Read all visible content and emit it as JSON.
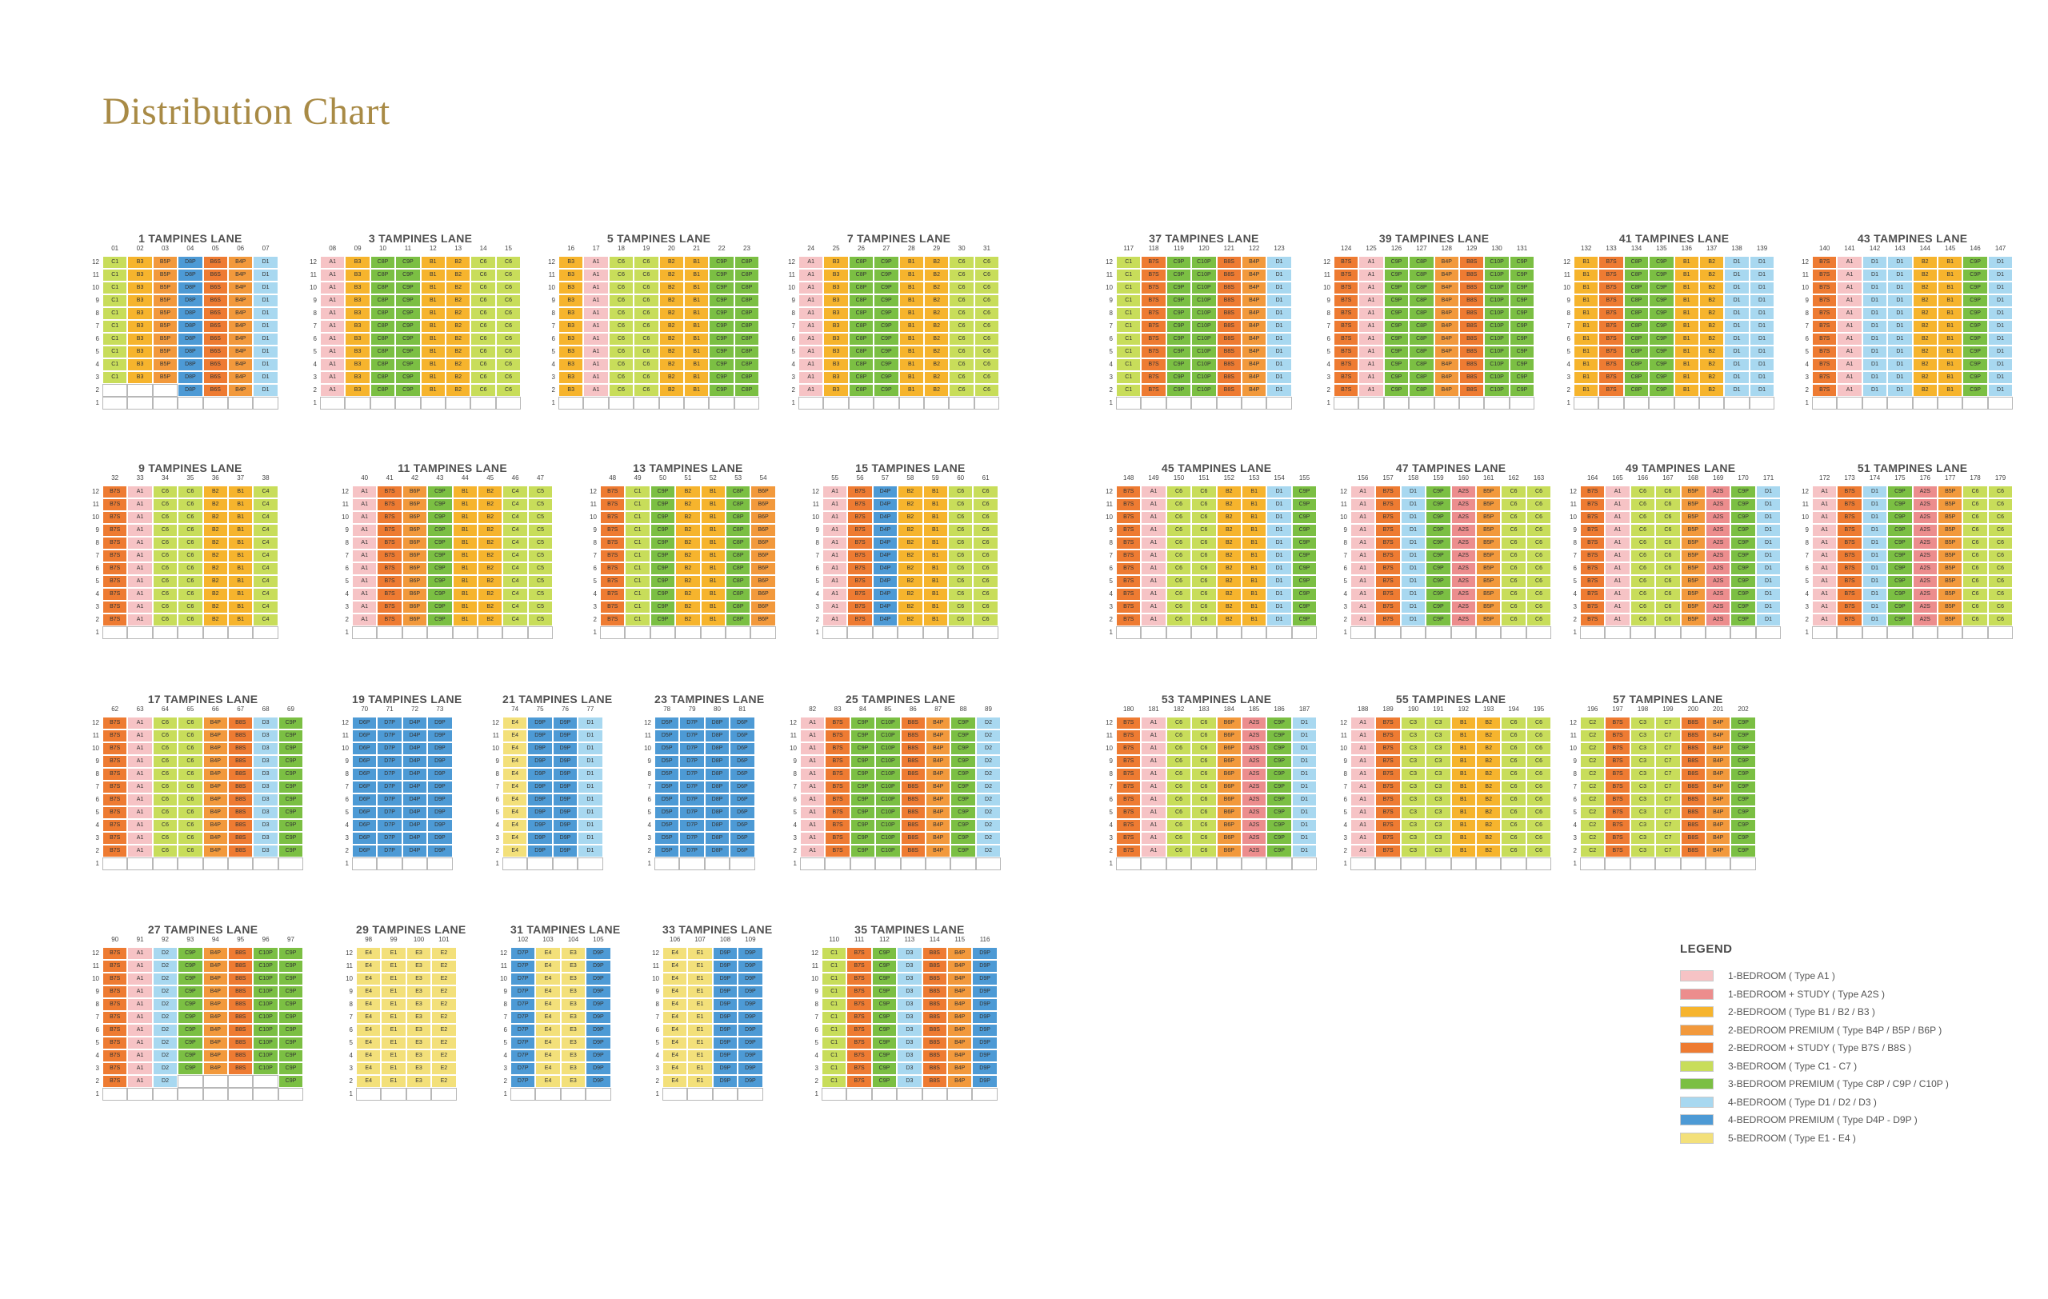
{
  "title": "Distribution Chart",
  "legend": {
    "title": "LEGEND",
    "items": [
      {
        "code": "a1",
        "label": "1-BEDROOM ( Type A1 )",
        "color": "#f6c3c5"
      },
      {
        "code": "a2s",
        "label": "1-BEDROOM + STUDY ( Type A2S )",
        "color": "#ec8d8d"
      },
      {
        "code": "b",
        "label": "2-BEDROOM ( Type B1 / B2 / B3 )",
        "color": "#f6b42d"
      },
      {
        "code": "bp",
        "label": "2-BEDROOM PREMIUM ( Type B4P / B5P / B6P )",
        "color": "#f2993c"
      },
      {
        "code": "bs",
        "label": "2-BEDROOM + STUDY ( Type B7S / B8S )",
        "color": "#ee7b32"
      },
      {
        "code": "c",
        "label": "3-BEDROOM ( Type C1 - C7 )",
        "color": "#c8dd5a"
      },
      {
        "code": "cp",
        "label": "3-BEDROOM PREMIUM ( Type C8P / C9P / C10P )",
        "color": "#7bbf43"
      },
      {
        "code": "d",
        "label": "4-BEDROOM ( Type D1 / D2 / D3 )",
        "color": "#a8d8f0"
      },
      {
        "code": "dp",
        "label": "4-BEDROOM PREMIUM ( Type D4P - D9P )",
        "color": "#4d9ad5"
      },
      {
        "code": "e",
        "label": "5-BEDROOM ( Type E1 - E4 )",
        "color": "#f3e07a"
      }
    ]
  },
  "chart_data": {
    "type": "table",
    "floors": [
      "12",
      "11",
      "10",
      "9",
      "8",
      "7",
      "6",
      "5",
      "4",
      "3",
      "2",
      "1"
    ],
    "blocks": [
      {
        "name": "1 TAMPINES LANE",
        "stacks": [
          "01",
          "02",
          "03",
          "04",
          "05",
          "06",
          "07"
        ],
        "types": [
          "C1",
          "B3",
          "B5P",
          "D8P",
          "B6S",
          "B4P",
          "D1"
        ],
        "empty": [
          [
            2,
            0
          ],
          [
            2,
            1
          ],
          [
            2,
            2
          ]
        ]
      },
      {
        "name": "3 TAMPINES LANE",
        "stacks": [
          "08",
          "09",
          "10",
          "11",
          "12",
          "13",
          "14",
          "15"
        ],
        "types": [
          "A1",
          "B3",
          "C8P",
          "C9P",
          "B1",
          "B2",
          "C6",
          "C6"
        ]
      },
      {
        "name": "5 TAMPINES LANE",
        "stacks": [
          "16",
          "17",
          "18",
          "19",
          "20",
          "21",
          "22",
          "23"
        ],
        "types": [
          "B3",
          "A1",
          "C6",
          "C6",
          "B2",
          "B1",
          "C9P",
          "C8P"
        ]
      },
      {
        "name": "7 TAMPINES LANE",
        "stacks": [
          "24",
          "25",
          "26",
          "27",
          "28",
          "29",
          "30",
          "31"
        ],
        "types": [
          "A1",
          "B3",
          "C8P",
          "C9P",
          "B1",
          "B2",
          "C6",
          "C6"
        ]
      },
      {
        "name": "37 TAMPINES LANE",
        "stacks": [
          "117",
          "118",
          "119",
          "120",
          "121",
          "122",
          "123"
        ],
        "types": [
          "C1",
          "B7S",
          "C9P",
          "C10P",
          "B8S",
          "B4P",
          "D1"
        ]
      },
      {
        "name": "39 TAMPINES LANE",
        "stacks": [
          "124",
          "125",
          "126",
          "127",
          "128",
          "129",
          "130",
          "131"
        ],
        "types": [
          "B7S",
          "A1",
          "C9P",
          "C8P",
          "B4P",
          "B8S",
          "C10P",
          "C9P"
        ]
      },
      {
        "name": "41 TAMPINES LANE",
        "stacks": [
          "132",
          "133",
          "134",
          "135",
          "136",
          "137",
          "138",
          "139"
        ],
        "types": [
          "B1",
          "B7S",
          "C8P",
          "C9P",
          "B1",
          "B2",
          "D1",
          "D1"
        ]
      },
      {
        "name": "43 TAMPINES LANE",
        "stacks": [
          "140",
          "141",
          "142",
          "143",
          "144",
          "145",
          "146",
          "147"
        ],
        "types": [
          "B7S",
          "A1",
          "D1",
          "D1",
          "B2",
          "B1",
          "C9P",
          "D1"
        ]
      },
      {
        "name": "9 TAMPINES LANE",
        "stacks": [
          "32",
          "33",
          "34",
          "35",
          "36",
          "37",
          "38"
        ],
        "types": [
          "B7S",
          "A1",
          "C6",
          "C6",
          "B2",
          "B1",
          "C4"
        ]
      },
      {
        "name": "11 TAMPINES LANE",
        "stacks": [
          "40",
          "41",
          "42",
          "43",
          "44",
          "45",
          "46",
          "47"
        ],
        "types": [
          "A1",
          "B7S",
          "B6P",
          "C9P",
          "B1",
          "B2",
          "C4",
          "C5"
        ]
      },
      {
        "name": "13 TAMPINES LANE",
        "stacks": [
          "48",
          "49",
          "50",
          "51",
          "52",
          "53",
          "54"
        ],
        "types": [
          "B7S",
          "C1",
          "C9P",
          "B2",
          "B1",
          "C8P",
          "B6P"
        ]
      },
      {
        "name": "15 TAMPINES LANE",
        "stacks": [
          "55",
          "56",
          "57",
          "58",
          "59",
          "60",
          "61"
        ],
        "types": [
          "A1",
          "B7S",
          "D4P",
          "B2",
          "B1",
          "C6",
          "C6"
        ]
      },
      {
        "name": "45 TAMPINES LANE",
        "stacks": [
          "148",
          "149",
          "150",
          "151",
          "152",
          "153",
          "154",
          "155"
        ],
        "types": [
          "B7S",
          "A1",
          "C6",
          "C6",
          "B2",
          "B1",
          "D1",
          "C9P"
        ]
      },
      {
        "name": "47 TAMPINES LANE",
        "stacks": [
          "156",
          "157",
          "158",
          "159",
          "160",
          "161",
          "162",
          "163"
        ],
        "types": [
          "A1",
          "B7S",
          "D1",
          "C9P",
          "A2S",
          "B5P",
          "C6",
          "C6"
        ]
      },
      {
        "name": "49 TAMPINES LANE",
        "stacks": [
          "164",
          "165",
          "166",
          "167",
          "168",
          "169",
          "170",
          "171"
        ],
        "types": [
          "B7S",
          "A1",
          "C6",
          "C6",
          "B5P",
          "A2S",
          "C9P",
          "D1"
        ]
      },
      {
        "name": "51 TAMPINES LANE",
        "stacks": [
          "172",
          "173",
          "174",
          "175",
          "176",
          "177",
          "178",
          "179"
        ],
        "types": [
          "A1",
          "B7S",
          "D1",
          "C9P",
          "A2S",
          "B5P",
          "C6",
          "C6"
        ]
      },
      {
        "name": "17 TAMPINES LANE",
        "stacks": [
          "62",
          "63",
          "64",
          "65",
          "66",
          "67",
          "68",
          "69"
        ],
        "types": [
          "B7S",
          "A1",
          "C6",
          "C6",
          "B4P",
          "B8S",
          "D3",
          "C9P"
        ]
      },
      {
        "name": "19 TAMPINES LANE",
        "stacks": [
          "70",
          "71",
          "72",
          "73"
        ],
        "types": [
          "D6P",
          "D7P",
          "D4P",
          "D9P"
        ]
      },
      {
        "name": "21 TAMPINES LANE",
        "stacks": [
          "74",
          "75",
          "76",
          "77"
        ],
        "types": [
          "E4",
          "D9P",
          "D9P",
          "D1"
        ]
      },
      {
        "name": "23 TAMPINES LANE",
        "stacks": [
          "78",
          "79",
          "80",
          "81"
        ],
        "types": [
          "D5P",
          "D7P",
          "D8P",
          "D6P"
        ]
      },
      {
        "name": "25 TAMPINES LANE",
        "stacks": [
          "82",
          "83",
          "84",
          "85",
          "86",
          "87",
          "88",
          "89"
        ],
        "types": [
          "A1",
          "B7S",
          "C9P",
          "C10P",
          "B8S",
          "B4P",
          "C9P",
          "D2"
        ],
        "empty": [
          [
            1,
            3
          ],
          [
            1,
            4
          ],
          [
            1,
            5
          ],
          [
            1,
            6
          ]
        ]
      },
      {
        "name": "53 TAMPINES LANE",
        "stacks": [
          "180",
          "181",
          "182",
          "183",
          "184",
          "185",
          "186",
          "187"
        ],
        "types": [
          "B7S",
          "A1",
          "C6",
          "C6",
          "B6P",
          "A2S",
          "C9P",
          "D1"
        ]
      },
      {
        "name": "55 TAMPINES LANE",
        "stacks": [
          "188",
          "189",
          "190",
          "191",
          "192",
          "193",
          "194",
          "195"
        ],
        "types": [
          "A1",
          "B7S",
          "C3",
          "C3",
          "B1",
          "B2",
          "C6",
          "C6"
        ]
      },
      {
        "name": "57 TAMPINES LANE",
        "stacks": [
          "196",
          "197",
          "198",
          "199",
          "200",
          "201",
          "202"
        ],
        "types": [
          "C2",
          "B7S",
          "C3",
          "C7",
          "B8S",
          "B4P",
          "C9P"
        ]
      },
      {
        "name": "27 TAMPINES LANE",
        "stacks": [
          "90",
          "91",
          "92",
          "93",
          "94",
          "95",
          "96",
          "97"
        ],
        "types": [
          "B7S",
          "A1",
          "D2",
          "C9P",
          "B4P",
          "B8S",
          "C10P",
          "C9P"
        ],
        "empty": [
          [
            2,
            3
          ],
          [
            2,
            4
          ],
          [
            2,
            5
          ],
          [
            2,
            6
          ]
        ]
      },
      {
        "name": "29 TAMPINES LANE",
        "stacks": [
          "98",
          "99",
          "100",
          "101"
        ],
        "types": [
          "E4",
          "E1",
          "E3",
          "E2"
        ]
      },
      {
        "name": "31 TAMPINES LANE",
        "stacks": [
          "102",
          "103",
          "104",
          "105"
        ],
        "types": [
          "D7P",
          "E4",
          "E3",
          "D9P"
        ]
      },
      {
        "name": "33 TAMPINES LANE",
        "stacks": [
          "106",
          "107",
          "108",
          "109"
        ],
        "types": [
          "E4",
          "E1",
          "D9P",
          "D9P"
        ]
      },
      {
        "name": "35 TAMPINES LANE",
        "stacks": [
          "110",
          "111",
          "112",
          "113",
          "114",
          "115",
          "116"
        ],
        "types": [
          "C1",
          "B7S",
          "C9P",
          "D3",
          "B8S",
          "B4P",
          "D9P"
        ]
      }
    ]
  }
}
